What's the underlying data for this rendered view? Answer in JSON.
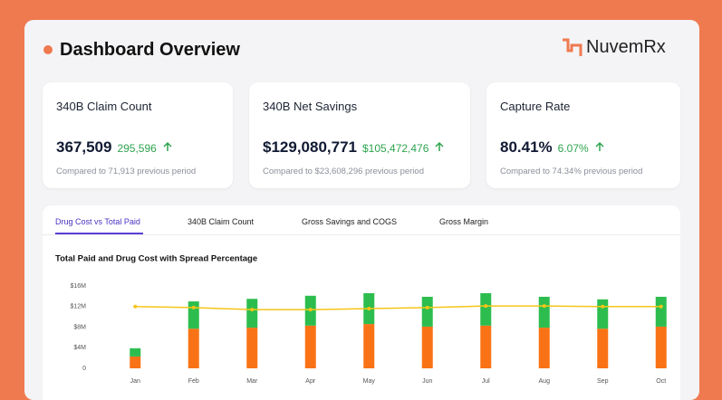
{
  "header": {
    "title": "Dashboard Overview",
    "logo": "NuvemRx"
  },
  "cards": [
    {
      "title": "340B Claim Count",
      "value": "367,509",
      "previous_value": "295,596",
      "comparison": "Compared to 71,913 previous period"
    },
    {
      "title": "340B Net Savings",
      "value": "$129,080,771",
      "previous_value": "$105,472,476",
      "comparison": "Compared to $23,608,296 previous period"
    },
    {
      "title": "Capture Rate",
      "value": "80.41%",
      "previous_value": "6.07%",
      "comparison": "Compared to 74.34% previous period"
    }
  ],
  "tabs": [
    "Drug Cost vs Total Paid",
    "340B Claim Count",
    "Gross Savings and COGS",
    "Gross Margin"
  ],
  "chart_data": {
    "type": "bar",
    "stacked": true,
    "title": "Total Paid and Drug Cost with Spread Percentage",
    "categories": [
      "Jan",
      "Feb",
      "Mar",
      "Apr",
      "May",
      "Jun",
      "Jul",
      "Aug",
      "Sep",
      "Oct"
    ],
    "series": [
      {
        "type": "bar",
        "color": "#f97316",
        "values": [
          2300000,
          7700000,
          7900000,
          8300000,
          8600000,
          8100000,
          8300000,
          7900000,
          7700000,
          8100000
        ]
      },
      {
        "type": "bar",
        "color": "#2dbd4e",
        "values": [
          1600000,
          5300000,
          5600000,
          5800000,
          6000000,
          5800000,
          6300000,
          6000000,
          5700000,
          5800000
        ]
      },
      {
        "type": "line",
        "color": "#f5c518",
        "values": [
          12000000,
          11800000,
          11400000,
          11400000,
          11600000,
          11800000,
          12100000,
          12100000,
          12000000,
          12000000
        ]
      }
    ],
    "ylim": [
      0,
      16000000
    ],
    "yticks": [
      0,
      {
        "value": 4000000,
        "label": "$4M"
      },
      {
        "value": 8000000,
        "label": "$8M"
      },
      {
        "value": 12000000,
        "label": "$12M"
      },
      {
        "value": 16000000,
        "label": "$16M"
      }
    ],
    "grid": false
  }
}
